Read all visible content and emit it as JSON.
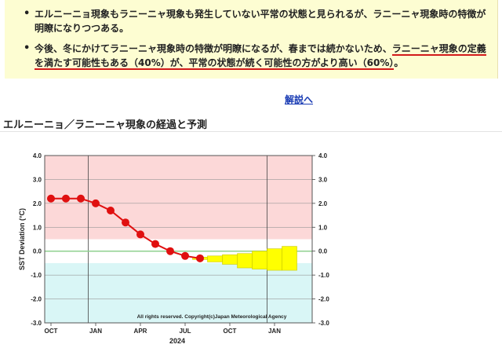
{
  "notice": {
    "bullet1": "エルニーニョ現象もラニーニャ現象も発生していない平常の状態と見られるが、ラニーニャ現象時の特徴が明瞭になりつつある。",
    "bullet2_part1": "今後、冬にかけてラニーニャ現象時の特徴が明瞭になるが、春までは続かないため、",
    "bullet2_part2": "ラニーニャ現象の定義を満たす可能性もある（40%）が、平常の状態が続く可能性の方がより高い（60%）",
    "bullet2_part3": "。"
  },
  "link_label": "解説へ",
  "section_title": "エルニーニョ／ラニーニャ現象の経過と予測",
  "colors": {
    "elnino_band": "#fcd8d8",
    "lanina_band": "#d9f6f6",
    "normal_band": "#ffffff",
    "observed_line": "#e01010",
    "forecast_fill": "#ffff00",
    "forecast_edge": "#c8c800",
    "zero_line": "#8fd08f",
    "link": "#1a3cb4",
    "notice_bg": "#fdfdd2"
  },
  "chart_data": {
    "type": "line",
    "ylabel": "SST Deviation (°C)",
    "xlabel": "2024",
    "ylim": [
      -3.0,
      4.0
    ],
    "yticks": [
      "4.0",
      "3.0",
      "2.0",
      "1.0",
      "0.0",
      "-1.0",
      "-2.0",
      "-3.0"
    ],
    "xticks": [
      "OCT",
      "JAN",
      "APR",
      "JUL",
      "OCT",
      "JAN"
    ],
    "elnino_threshold": 0.5,
    "lanina_threshold": -0.5,
    "copyright": "All rights reserved. Copyright(c)Japan Meteorological Agency",
    "observed": {
      "months": [
        "2023-10",
        "2023-11",
        "2023-12",
        "2024-01",
        "2024-02",
        "2024-03",
        "2024-04",
        "2024-05",
        "2024-06",
        "2024-07",
        "2024-08"
      ],
      "values": [
        2.2,
        2.2,
        2.2,
        2.0,
        1.7,
        1.2,
        0.7,
        0.3,
        0.0,
        -0.2,
        -0.3
      ]
    },
    "forecast": {
      "months": [
        "2024-08",
        "2024-09",
        "2024-10",
        "2024-11",
        "2024-12",
        "2025-01",
        "2025-02"
      ],
      "upper": [
        -0.25,
        -0.2,
        -0.15,
        -0.1,
        0.0,
        0.1,
        0.2
      ],
      "lower": [
        -0.35,
        -0.45,
        -0.55,
        -0.7,
        -0.75,
        -0.8,
        -0.8
      ]
    }
  }
}
